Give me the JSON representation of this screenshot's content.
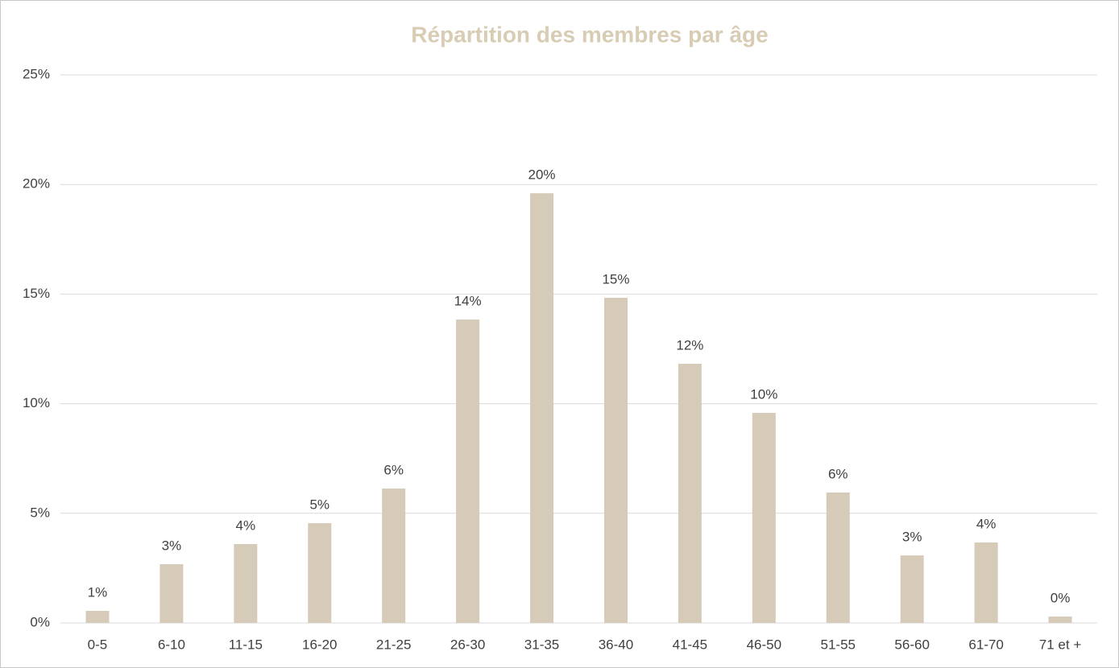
{
  "chart_data": {
    "type": "bar",
    "title": "Répartition des membres par âge",
    "categories": [
      "0-5",
      "6-10",
      "11-15",
      "16-20",
      "21-25",
      "26-30",
      "31-35",
      "36-40",
      "41-45",
      "46-50",
      "51-55",
      "56-60",
      "61-70",
      "71 et +"
    ],
    "values": [
      0.55,
      2.68,
      3.6,
      4.55,
      6.13,
      13.84,
      19.6,
      14.83,
      11.82,
      9.58,
      5.95,
      3.08,
      3.67,
      0.29
    ],
    "value_labels": [
      "1%",
      "3%",
      "4%",
      "5%",
      "6%",
      "14%",
      "20%",
      "15%",
      "12%",
      "10%",
      "6%",
      "3%",
      "4%",
      "0%"
    ],
    "color": "#d6cbb8",
    "ylim": [
      0,
      25
    ],
    "yticks": [
      {
        "value": 0,
        "label": "0%"
      },
      {
        "value": 5,
        "label": "5%"
      },
      {
        "value": 10,
        "label": "10%"
      },
      {
        "value": 15,
        "label": "15%"
      },
      {
        "value": 20,
        "label": "20%"
      },
      {
        "value": 25,
        "label": "25%"
      }
    ],
    "grid": true
  }
}
